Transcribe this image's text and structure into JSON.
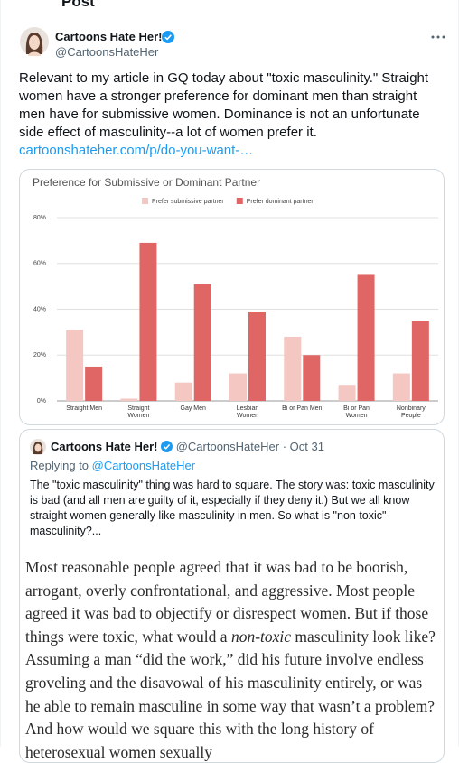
{
  "header": {
    "title": "Post"
  },
  "tweet": {
    "name": "Cartoons Hate Her!",
    "handle": "@CartoonsHateHer",
    "text": "Relevant to my article in GQ today about \"toxic masculinity.\" Straight women have a stronger preference for dominant men than straight men have for submissive women. Dominance is not an unfortunate side effect of masculinity--a lot of women prefer it.",
    "link": "cartoonshateher.com/p/do-you-want-…"
  },
  "chart_data": {
    "type": "bar",
    "title": "Preference for Submissive or Dominant Partner",
    "categories": [
      "Straight Men",
      "Straight Women",
      "Gay Men",
      "Lesbian Women",
      "Bi or Pan Men",
      "Bi or Pan Women",
      "Nonbinary People"
    ],
    "series": [
      {
        "name": "Prefer submissive partner",
        "color": "#f4c7c3",
        "values": [
          31,
          1,
          8,
          12,
          28,
          7,
          12
        ]
      },
      {
        "name": "Prefer dominant partner",
        "color": "#e06666",
        "values": [
          15,
          69,
          51,
          39,
          20,
          55,
          35
        ]
      }
    ],
    "ylim": [
      0,
      80
    ],
    "yticks": [
      {
        "value": 0,
        "label": "0%"
      },
      {
        "value": 20,
        "label": "20%"
      },
      {
        "value": 40,
        "label": "40%"
      },
      {
        "value": 60,
        "label": "60%"
      },
      {
        "value": 80,
        "label": "80%"
      }
    ],
    "grid": true,
    "legend": "top"
  },
  "quote": {
    "name": "Cartoons Hate Her!",
    "handle": "@CartoonsHateHer",
    "separator": "·",
    "date": "Oct 31",
    "replying_to": "Replying to",
    "replying_handle": "@CartoonsHateHer",
    "text": "The \"toxic masculinity\" thing was hard to square. The story was: toxic masculinity is bad (and all men are guilty of it, especially if they deny it.) But we all know straight women generally like masculinity in men. So what is \"non toxic\" masculinity?...",
    "image_text": [
      "Most reasonable people agreed that it was bad to be boorish, arrogant, overly confrontational, and aggressive. Most people agreed it was bad to objectify or disrespect women. But if those things were toxic, what would a ",
      "non-toxic",
      " masculinity look like? Assuming a man “did the work,” did his future involve endless groveling and the disavowal of his masculinity entirely, or was he able to remain masculine in some way that wasn’t a problem? And how would we square this with the long history of heterosexual women sexually"
    ]
  }
}
